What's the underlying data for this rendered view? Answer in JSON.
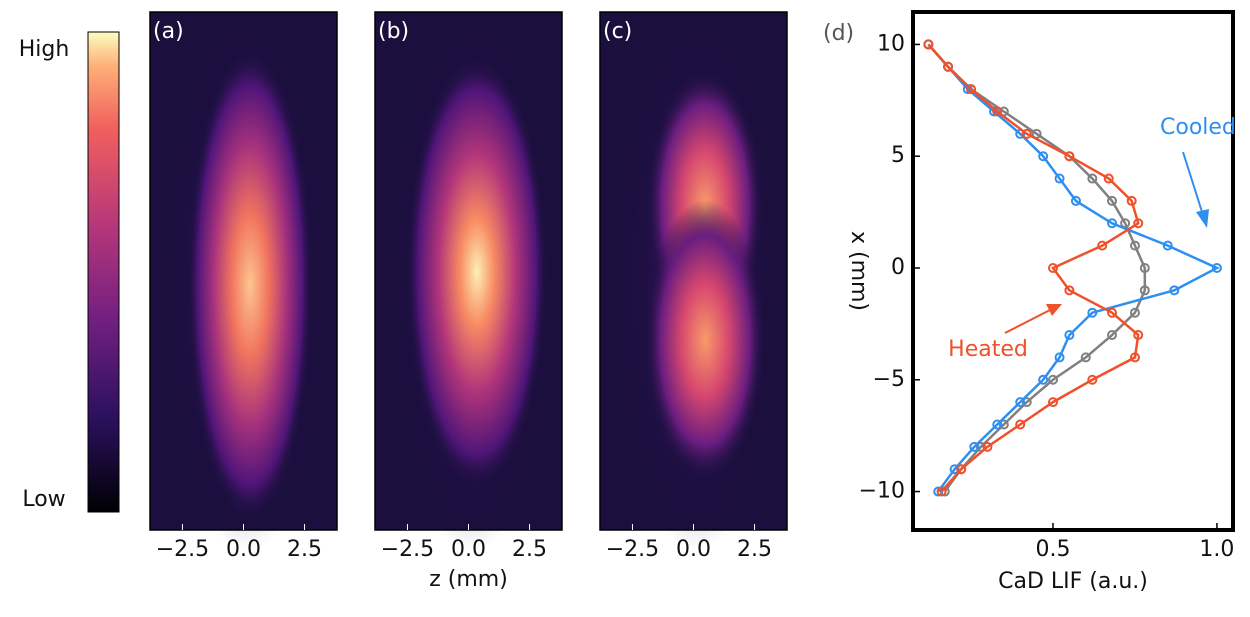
{
  "colorbar": {
    "high": "High",
    "low": "Low"
  },
  "chart_data": [
    {
      "type": "heatmap",
      "panel_label": "(a)",
      "xlim": [
        -3.83,
        3.83
      ],
      "xticks": [
        {
          "value": -2.5,
          "label": "−2.5"
        },
        {
          "value": 0,
          "label": "0.0"
        },
        {
          "value": 2.5,
          "label": "2.5"
        }
      ]
    },
    {
      "type": "heatmap",
      "panel_label": "(b)",
      "xlim": [
        -3.83,
        3.83
      ],
      "xlabel": "z (mm)",
      "xticks": [
        {
          "value": -2.5,
          "label": "−2.5"
        },
        {
          "value": 0,
          "label": "0.0"
        },
        {
          "value": 2.5,
          "label": "2.5"
        }
      ]
    },
    {
      "type": "heatmap",
      "panel_label": "(c)",
      "xlim": [
        -3.83,
        3.83
      ],
      "xticks": [
        {
          "value": -2.5,
          "label": "−2.5"
        },
        {
          "value": 0,
          "label": "0.0"
        },
        {
          "value": 2.5,
          "label": "2.5"
        }
      ]
    },
    {
      "type": "line",
      "panel_label": "(d)",
      "orientation": "horizontal",
      "markers": true,
      "xlabel": "CaD LIF (a.u.)",
      "ylabel": "x (mm)",
      "xlim": [
        0.073,
        1.049
      ],
      "xticks": [
        0.5,
        {
          "value": 1,
          "label": "1.0"
        }
      ],
      "ylim": [
        -11.72,
        11.45
      ],
      "yticks": [
        10,
        5,
        0,
        {
          "value": -5,
          "label": "−5"
        },
        {
          "value": -10,
          "label": "−10"
        }
      ],
      "y": [
        10,
        9,
        8,
        7,
        6,
        5,
        4,
        3,
        2,
        1,
        0,
        -1,
        -2,
        -3,
        -4,
        -5,
        -6,
        -7,
        -8,
        -9,
        -10
      ],
      "series": [
        {
          "name": "Cooled",
          "color": "#2f8ff0",
          "values": [
            0.12,
            0.18,
            0.24,
            0.32,
            0.4,
            0.47,
            0.52,
            0.57,
            0.68,
            0.85,
            1.0,
            0.87,
            0.62,
            0.55,
            0.52,
            0.47,
            0.4,
            0.33,
            0.26,
            0.2,
            0.15
          ]
        },
        {
          "name": "Heated",
          "color": "#f0502a",
          "values": [
            0.12,
            0.18,
            0.25,
            0.33,
            0.42,
            0.55,
            0.67,
            0.74,
            0.76,
            0.65,
            0.5,
            0.55,
            0.68,
            0.76,
            0.75,
            0.62,
            0.5,
            0.4,
            0.3,
            0.22,
            0.16
          ]
        },
        {
          "color": "#808080",
          "values": [
            0.12,
            0.18,
            0.25,
            0.35,
            0.45,
            0.55,
            0.62,
            0.68,
            0.72,
            0.75,
            0.78,
            0.78,
            0.75,
            0.68,
            0.6,
            0.5,
            0.42,
            0.35,
            0.28,
            0.22,
            0.17
          ]
        }
      ]
    }
  ]
}
